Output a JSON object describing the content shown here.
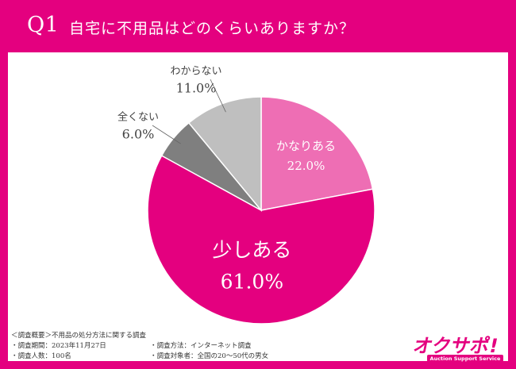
{
  "header": {
    "q_number": "Q1",
    "question": "自宅に不用品はどのくらいありますか？"
  },
  "colors": {
    "brand": "#e4007f",
    "slice_kanari": "#ee6eb4",
    "slice_sukoshi": "#e4007f",
    "slice_mattaku": "#7f7f7f",
    "slice_wakaranai": "#bfbfbf"
  },
  "chart_data": {
    "type": "pie",
    "slices": [
      {
        "label": "かなりある",
        "value": 22.0,
        "value_text": "22.0%",
        "color": "#ee6eb4"
      },
      {
        "label": "少しある",
        "value": 61.0,
        "value_text": "61.0%",
        "color": "#e4007f"
      },
      {
        "label": "全くない",
        "value": 6.0,
        "value_text": "6.0%",
        "color": "#7f7f7f"
      },
      {
        "label": "わからない",
        "value": 11.0,
        "value_text": "11.0%",
        "color": "#bfbfbf"
      }
    ]
  },
  "footer": {
    "overview": "＜調査概要＞不用品の処分方法に関する調査",
    "period": "・調査期間：2023年11月27日",
    "method": "・調査方法：インターネット調査",
    "count": "・調査人数：100名",
    "target": "・調査対象者：全国の20〜50代の男女"
  },
  "logo": {
    "text": "オクサポ!",
    "subtext": "Auction Support Service"
  }
}
